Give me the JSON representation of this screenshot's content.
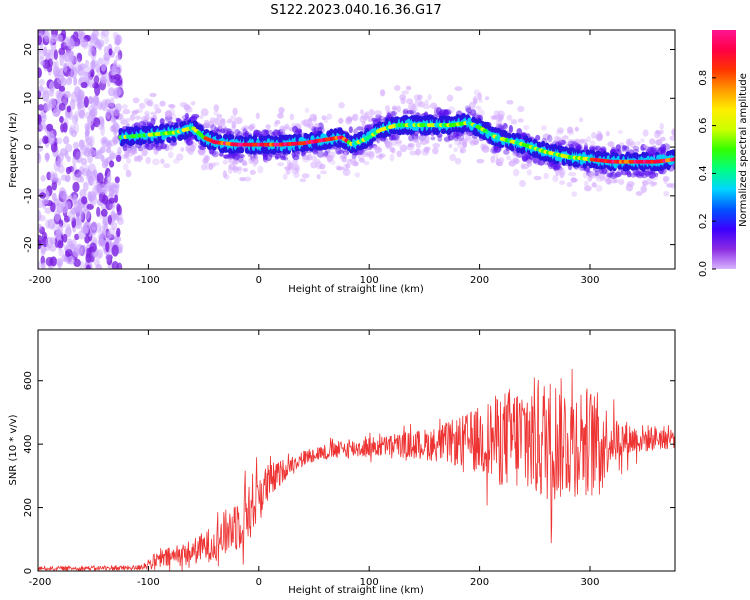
{
  "title": "S122.2023.040.16.36.G17",
  "chart_data": [
    {
      "type": "heatmap",
      "xlabel": "Height of straight line (km)",
      "ylabel": "Frequency (Hz)",
      "xlim": [
        -200,
        377
      ],
      "ylim": [
        -25,
        24
      ],
      "xticks": [
        -200,
        -100,
        0,
        100,
        200,
        300
      ],
      "yticks": [
        -20,
        -10,
        0,
        10,
        20
      ],
      "colorbar": {
        "label": "Normalized spectral amplitude",
        "range": [
          0,
          1
        ],
        "ticks": [
          0.0,
          0.2,
          0.4,
          0.6,
          0.8
        ],
        "colormap": [
          "#d9b3ff",
          "#8a2be2",
          "#3a00ff",
          "#0055ff",
          "#00d5ff",
          "#00ff80",
          "#33ff00",
          "#ccff00",
          "#ffee00",
          "#ff9900",
          "#ff3300",
          "#ff0044",
          "#ff1493"
        ]
      },
      "ridge": {
        "x": [
          -125,
          -100,
          -75,
          -60,
          -50,
          -40,
          -20,
          0,
          20,
          40,
          60,
          75,
          85,
          100,
          110,
          125,
          150,
          175,
          190,
          200,
          215,
          240,
          260,
          280,
          300,
          320,
          340,
          360,
          377
        ],
        "y": [
          2,
          2.5,
          3,
          4,
          2,
          1,
          0.5,
          0.5,
          0.5,
          0.8,
          1.5,
          2,
          0.5,
          2,
          3.5,
          4.5,
          4.5,
          4.5,
          5,
          4,
          2,
          0.5,
          -1,
          -2,
          -2.5,
          -3,
          -3,
          -3,
          -2.5
        ]
      },
      "noise_region_x": [
        -200,
        -125
      ]
    },
    {
      "type": "line",
      "xlabel": "Height of straight line (km)",
      "ylabel": "SNR (10 * v/v)",
      "xlim": [
        -200,
        377
      ],
      "ylim": [
        0,
        760
      ],
      "xticks": [
        -200,
        -100,
        0,
        100,
        200,
        300
      ],
      "yticks": [
        0,
        200,
        400,
        600
      ],
      "color": "#ee3333",
      "envelope": {
        "x": [
          -200,
          -110,
          -90,
          -60,
          -40,
          -20,
          -10,
          0,
          10,
          20,
          30,
          50,
          80,
          120,
          160,
          190,
          210,
          230,
          250,
          270,
          290,
          310,
          320,
          340,
          360,
          377
        ],
        "mean": [
          8,
          10,
          35,
          60,
          90,
          150,
          190,
          240,
          280,
          310,
          340,
          370,
          385,
          395,
          400,
          410,
          415,
          420,
          415,
          415,
          420,
          410,
          415,
          415,
          420,
          420
        ],
        "spread": [
          6,
          8,
          30,
          40,
          60,
          90,
          110,
          90,
          60,
          40,
          25,
          25,
          30,
          35,
          55,
          90,
          130,
          170,
          200,
          200,
          180,
          150,
          80,
          50,
          40,
          35
        ]
      }
    }
  ]
}
